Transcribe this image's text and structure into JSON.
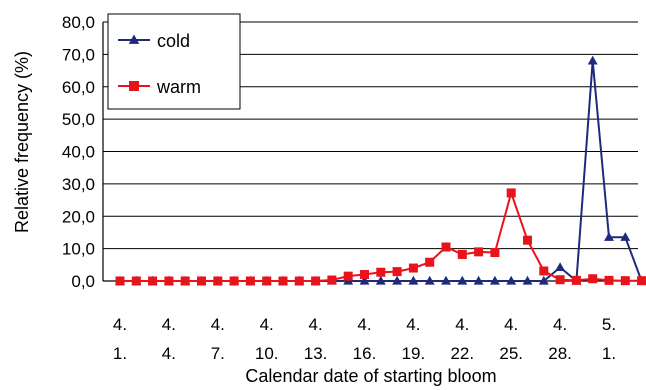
{
  "chart_data": {
    "type": "line",
    "title": "",
    "xlabel": "Calendar date of starting bloom",
    "ylabel": "Relative frequency (%)",
    "ylim": [
      0,
      80
    ],
    "yticks": [
      "0,0",
      "10,0",
      "20,0",
      "30,0",
      "40,0",
      "50,0",
      "60,0",
      "70,0",
      "80,0"
    ],
    "grid": "horizontal",
    "legend_position": "top-left",
    "x": [
      "4. 1.",
      "4. 2.",
      "4. 3.",
      "4. 4.",
      "4. 5.",
      "4. 6.",
      "4. 7.",
      "4. 8.",
      "4. 9.",
      "4. 10.",
      "4. 11.",
      "4. 12.",
      "4. 13.",
      "4. 14.",
      "4. 15.",
      "4. 16.",
      "4. 17.",
      "4. 18.",
      "4. 19.",
      "4. 20.",
      "4. 21.",
      "4. 22.",
      "4. 23.",
      "4. 24.",
      "4. 25.",
      "4. 26.",
      "4. 27.",
      "4. 28.",
      "4. 29.",
      "4. 30.",
      "5. 1.",
      "5. 2.",
      "5. 3."
    ],
    "xtick_labels": [
      {
        "index": 0,
        "month": "4.",
        "day": "1."
      },
      {
        "index": 3,
        "month": "4.",
        "day": "4."
      },
      {
        "index": 6,
        "month": "4.",
        "day": "7."
      },
      {
        "index": 9,
        "month": "4.",
        "day": "10."
      },
      {
        "index": 12,
        "month": "4.",
        "day": "13."
      },
      {
        "index": 15,
        "month": "4.",
        "day": "16."
      },
      {
        "index": 18,
        "month": "4.",
        "day": "19."
      },
      {
        "index": 21,
        "month": "4.",
        "day": "22."
      },
      {
        "index": 24,
        "month": "4.",
        "day": "25."
      },
      {
        "index": 27,
        "month": "4.",
        "day": "28."
      },
      {
        "index": 30,
        "month": "5.",
        "day": "1."
      }
    ],
    "series": [
      {
        "name": "cold",
        "color": "#1f2a7a",
        "marker": "triangle",
        "values": [
          0,
          0,
          0,
          0,
          0,
          0,
          0,
          0,
          0,
          0,
          0,
          0,
          0,
          0,
          0,
          0,
          0,
          0,
          0,
          0,
          0,
          0,
          0,
          0,
          0,
          0,
          0,
          4.2,
          0,
          68,
          13.5,
          13.5,
          0
        ]
      },
      {
        "name": "warm",
        "color": "#e8141b",
        "marker": "square",
        "values": [
          0,
          0,
          0,
          0,
          0,
          0,
          0,
          0,
          0,
          0,
          0,
          0,
          0,
          0.3,
          1.5,
          2,
          2.7,
          2.9,
          4,
          5.8,
          10.5,
          8.2,
          9,
          8.8,
          27.2,
          12.6,
          3.1,
          0.4,
          0.2,
          0.7,
          0.2,
          0.1,
          0.1
        ]
      }
    ]
  }
}
